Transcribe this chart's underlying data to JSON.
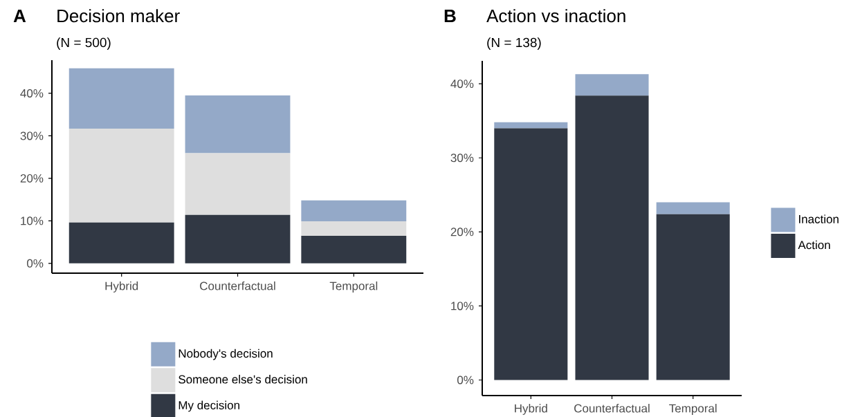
{
  "chart_data": [
    {
      "type": "bar",
      "title": "Decision maker",
      "subtitle": "(N = 500)",
      "annotations": [
        "A"
      ],
      "stacked": true,
      "legend": "bottom",
      "categories": [
        "Hybrid",
        "Counterfactual",
        "Temporal"
      ],
      "series": [
        {
          "name": "My decision",
          "color": "#313844",
          "values": [
            9.6,
            11.4,
            6.5
          ]
        },
        {
          "name": "Someone else's decision",
          "color": "#dedede",
          "values": [
            22.1,
            14.5,
            3.4
          ]
        },
        {
          "name": "Nobody's decision",
          "color": "#94a9c8",
          "values": [
            14.2,
            13.6,
            4.9
          ]
        }
      ],
      "ylim": [
        -2.3,
        47.8
      ],
      "yticks": [
        {
          "value": 0,
          "label": "0%"
        },
        {
          "value": 10,
          "label": "10%"
        },
        {
          "value": 20,
          "label": "20%"
        },
        {
          "value": 30,
          "label": "30%"
        },
        {
          "value": 40,
          "label": "40%"
        }
      ]
    },
    {
      "type": "bar",
      "title": "Action vs inaction",
      "subtitle": "(N = 138)",
      "annotations": [
        "B"
      ],
      "stacked": true,
      "legend": "right",
      "categories": [
        "Hybrid",
        "Counterfactual",
        "Temporal"
      ],
      "series": [
        {
          "name": "Action",
          "color": "#313844",
          "values": [
            34.0,
            38.4,
            22.4
          ]
        },
        {
          "name": "Inaction",
          "color": "#94a9c8",
          "values": [
            0.8,
            2.9,
            1.6
          ]
        }
      ],
      "ylim": [
        -2.1,
        43.1
      ],
      "yticks": [
        {
          "value": 0,
          "label": "0%"
        },
        {
          "value": 10,
          "label": "10%"
        },
        {
          "value": 20,
          "label": "20%"
        },
        {
          "value": 30,
          "label": "30%"
        },
        {
          "value": 40,
          "label": "40%"
        }
      ]
    }
  ]
}
